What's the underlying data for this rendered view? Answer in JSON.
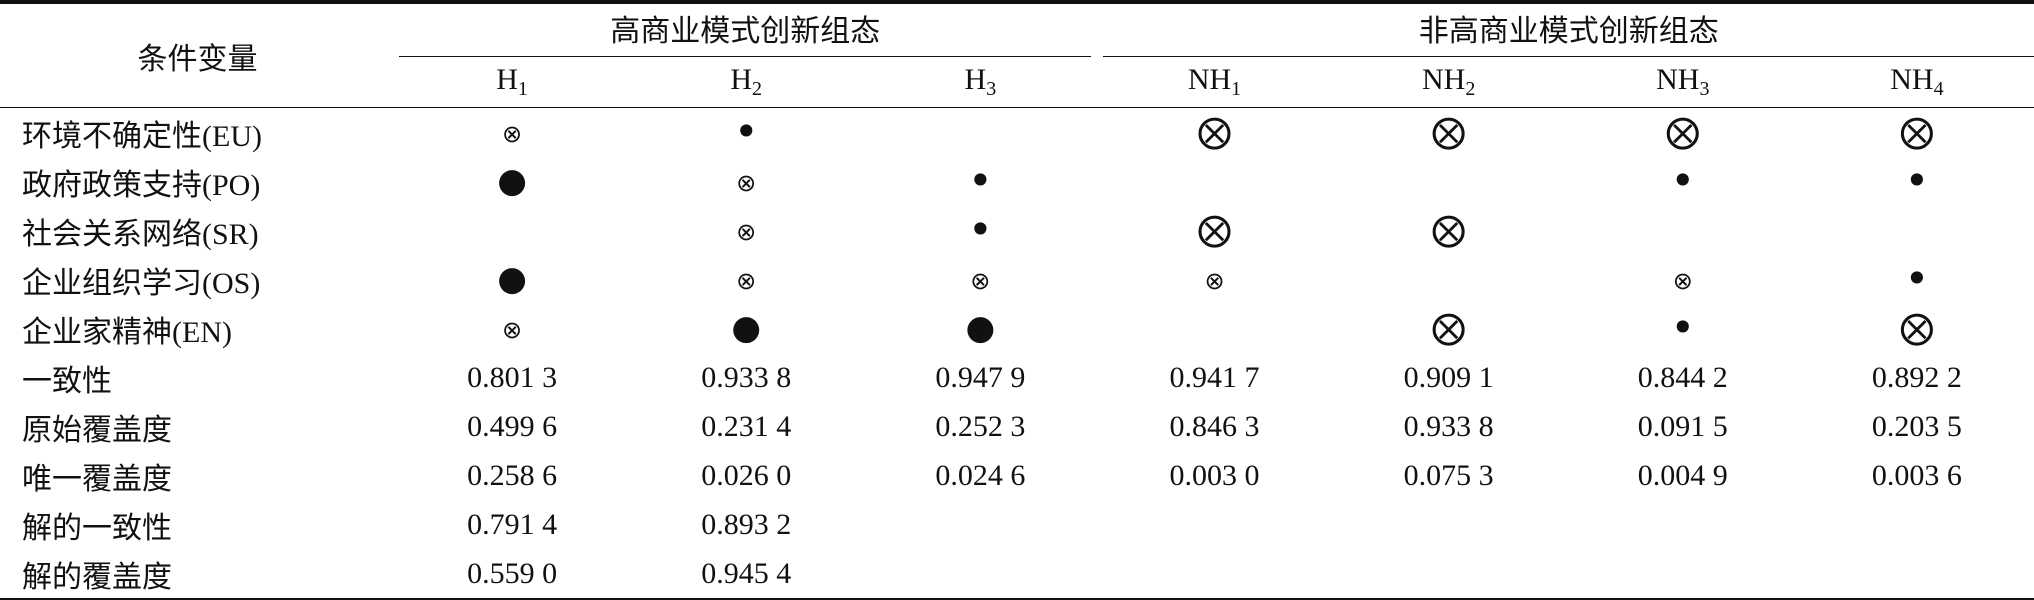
{
  "header": {
    "row_label": "条件变量",
    "groups": [
      {
        "title": "高商业模式创新组态",
        "columns": [
          {
            "name": "H",
            "sub": "1"
          },
          {
            "name": "H",
            "sub": "2"
          },
          {
            "name": "H",
            "sub": "3"
          }
        ]
      },
      {
        "title": "非高商业模式创新组态",
        "columns": [
          {
            "name": "NH",
            "sub": "1"
          },
          {
            "name": "NH",
            "sub": "2"
          },
          {
            "name": "NH",
            "sub": "3"
          },
          {
            "name": "NH",
            "sub": "4"
          }
        ]
      }
    ]
  },
  "rows": [
    {
      "label": "环境不确定性(EU)",
      "cells": [
        "⊗",
        "•",
        null,
        "⨂",
        "⨂",
        "⨂",
        "⨂"
      ]
    },
    {
      "label": "政府政策支持(PO)",
      "cells": [
        "●",
        "⊗",
        "•",
        null,
        null,
        "•",
        "•"
      ]
    },
    {
      "label": "社会关系网络(SR)",
      "cells": [
        null,
        "⊗",
        "•",
        "⨂",
        "⨂",
        null,
        null
      ]
    },
    {
      "label": "企业组织学习(OS)",
      "cells": [
        "●",
        "⊗",
        "⊗",
        "⊗",
        null,
        "⊗",
        "•"
      ]
    },
    {
      "label": "企业家精神(EN)",
      "cells": [
        "⊗",
        "●",
        "●",
        null,
        "⨂",
        "•",
        "⨂"
      ]
    },
    {
      "label": "一致性",
      "cells": [
        "0.801 3",
        "0.933 8",
        "0.947 9",
        "0.941 7",
        "0.909 1",
        "0.844 2",
        "0.892 2"
      ]
    },
    {
      "label": "原始覆盖度",
      "cells": [
        "0.499 6",
        "0.231 4",
        "0.252 3",
        "0.846 3",
        "0.933 8",
        "0.091 5",
        "0.203 5"
      ]
    },
    {
      "label": "唯一覆盖度",
      "cells": [
        "0.258 6",
        "0.026 0",
        "0.024 6",
        "0.003 0",
        "0.075 3",
        "0.004 9",
        "0.003 6"
      ]
    },
    {
      "label": "解的一致性",
      "cells": [
        "0.791 4",
        "0.893 2",
        null,
        null,
        null,
        null,
        null
      ]
    },
    {
      "label": "解的覆盖度",
      "cells": [
        "0.559 0",
        "0.945 4",
        null,
        null,
        null,
        null,
        null
      ]
    }
  ]
}
